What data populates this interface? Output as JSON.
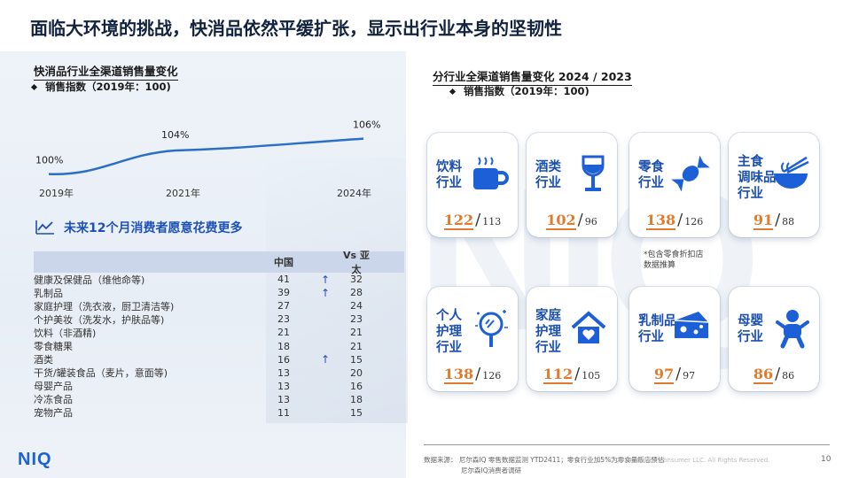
{
  "title": "面临大环境的挑战，快消品依然平缓扩张，显示出行业本身的坚韧性",
  "left": {
    "section_title": "快消品行业全渠道销售量变化",
    "subtitle": "销售指数（2019年：100)",
    "future_title": "未来12个月消费者愿意花费更多",
    "table": {
      "headers": [
        "",
        "中国",
        "",
        "Vs 亚太"
      ],
      "rows": [
        {
          "name": "健康及保健品（维他命等)",
          "cn": "41",
          "arrow": "↑",
          "ap": "32"
        },
        {
          "name": "乳制品",
          "cn": "39",
          "arrow": "↑",
          "ap": "28"
        },
        {
          "name": "家庭护理（洗衣液，厨卫清洁等)",
          "cn": "27",
          "arrow": "",
          "ap": "24"
        },
        {
          "name": "个护美妆（洗发水，护肤品等)",
          "cn": "23",
          "arrow": "",
          "ap": "23"
        },
        {
          "name": "饮料（非酒精)",
          "cn": "21",
          "arrow": "",
          "ap": "21"
        },
        {
          "name": "零食糖果",
          "cn": "18",
          "arrow": "",
          "ap": "21"
        },
        {
          "name": "酒类",
          "cn": "16",
          "arrow": "↑",
          "ap": "15"
        },
        {
          "name": "干货/罐装食品（麦片，意面等)",
          "cn": "13",
          "arrow": "",
          "ap": "20"
        },
        {
          "name": "母婴产品",
          "cn": "13",
          "arrow": "",
          "ap": "16"
        },
        {
          "name": "冷冻食品",
          "cn": "13",
          "arrow": "",
          "ap": "18"
        },
        {
          "name": "宠物产品",
          "cn": "11",
          "arrow": "",
          "ap": "15"
        }
      ]
    }
  },
  "chart_data": {
    "type": "line",
    "title": "快消品行业全渠道销售量变化",
    "x": [
      "2019年",
      "2021年",
      "2024年"
    ],
    "values": [
      100,
      104,
      106
    ],
    "labels": [
      "100%",
      "104%",
      "106%"
    ],
    "ylim": [
      95,
      110
    ],
    "grid": false,
    "color": "#2a6ec8"
  },
  "right": {
    "section_title": "分行业全渠道销售量变化 2024 / 2023",
    "subtitle": "销售指数（2019年：100)",
    "cards": [
      {
        "label": "饮料\n行业",
        "icon": "coffee-cup-icon",
        "v2024": "122",
        "v2023": "113"
      },
      {
        "label": "酒类\n行业",
        "icon": "wine-glass-icon",
        "v2024": "102",
        "v2023": "96"
      },
      {
        "label": "零食\n行业",
        "icon": "candy-icon",
        "v2024": "138",
        "v2023": "126"
      },
      {
        "label": "主食\n调味品\n行业",
        "icon": "noodle-bowl-icon",
        "v2024": "91",
        "v2023": "88"
      },
      {
        "label": "个人\n护理\n行业",
        "icon": "mirror-icon",
        "v2024": "138",
        "v2023": "126"
      },
      {
        "label": "家庭\n护理\n行业",
        "icon": "house-heart-icon",
        "v2024": "112",
        "v2023": "105"
      },
      {
        "label": "乳制品\n行业",
        "icon": "cheese-icon",
        "v2024": "97",
        "v2023": "97"
      },
      {
        "label": "母婴\n行业",
        "icon": "baby-icon",
        "v2024": "86",
        "v2023": "86"
      }
    ],
    "note": "*包含零食折扣店\n数据推算"
  },
  "footer": {
    "source": "数据来源：  尼尔森IQ 零售数据监测 YTD2411；零食行业加5%为零食量贩店预估",
    "source2": "尼尔森IQ消费者调研",
    "copyright": "© 2024 Nielsen Consumer LLC. All Rights Reserved.",
    "page": "10",
    "logo": "NIQ"
  },
  "colors": {
    "accent": "#1d50b8",
    "line": "#2a6ec8",
    "value": "#e07a2e"
  }
}
